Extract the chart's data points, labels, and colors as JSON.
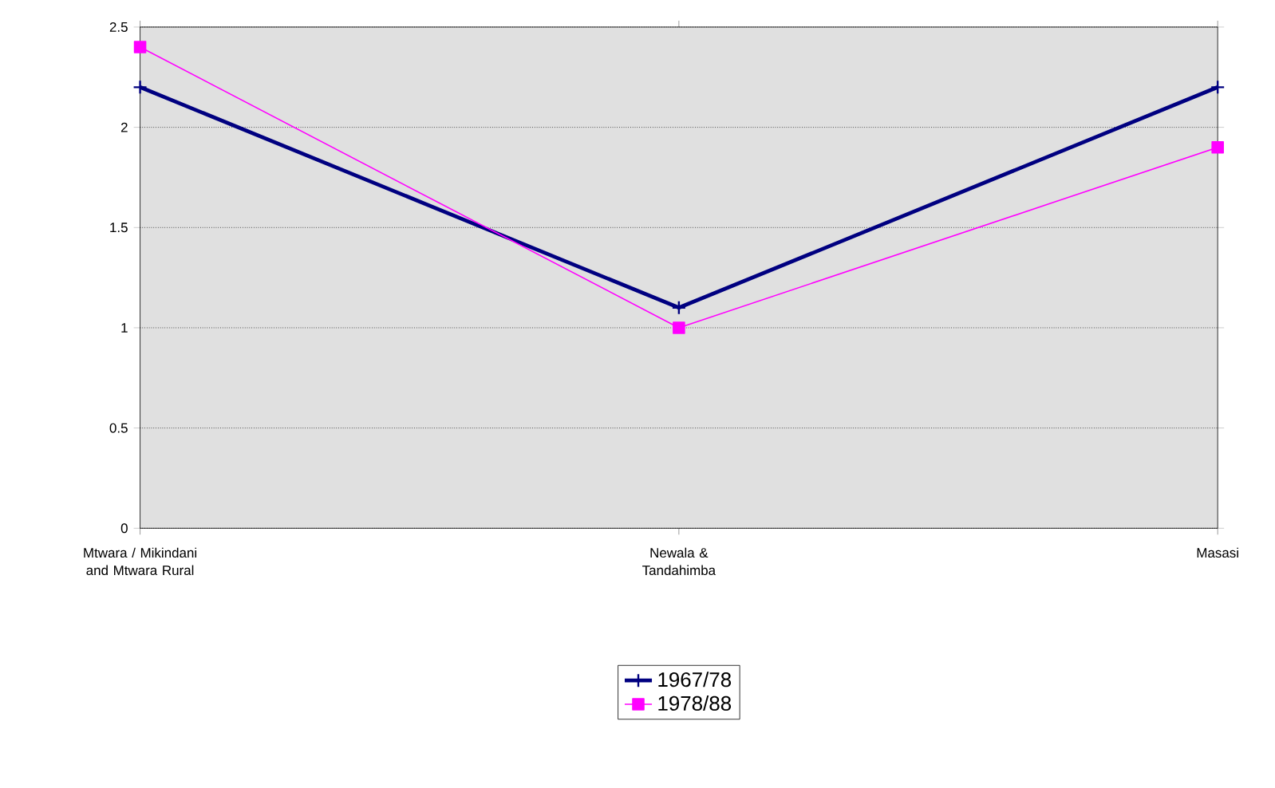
{
  "chart_data": {
    "type": "line",
    "categories": [
      "Mtwara / Mikindani and Mtwara Rural",
      "Newala & Tandahimba",
      "Masasi"
    ],
    "series": [
      {
        "name": "1967/78",
        "color": "#000080",
        "marker": "cross",
        "values": [
          2.2,
          1.1,
          2.2
        ]
      },
      {
        "name": "1978/88",
        "color": "#ff00ff",
        "marker": "square",
        "values": [
          2.4,
          1.0,
          1.9
        ]
      }
    ],
    "ylim": [
      0,
      2.5
    ],
    "yticks": [
      0,
      0.5,
      1,
      1.5,
      2,
      2.5
    ],
    "grid": "y",
    "legend": "bottom",
    "line_style": "solid"
  }
}
